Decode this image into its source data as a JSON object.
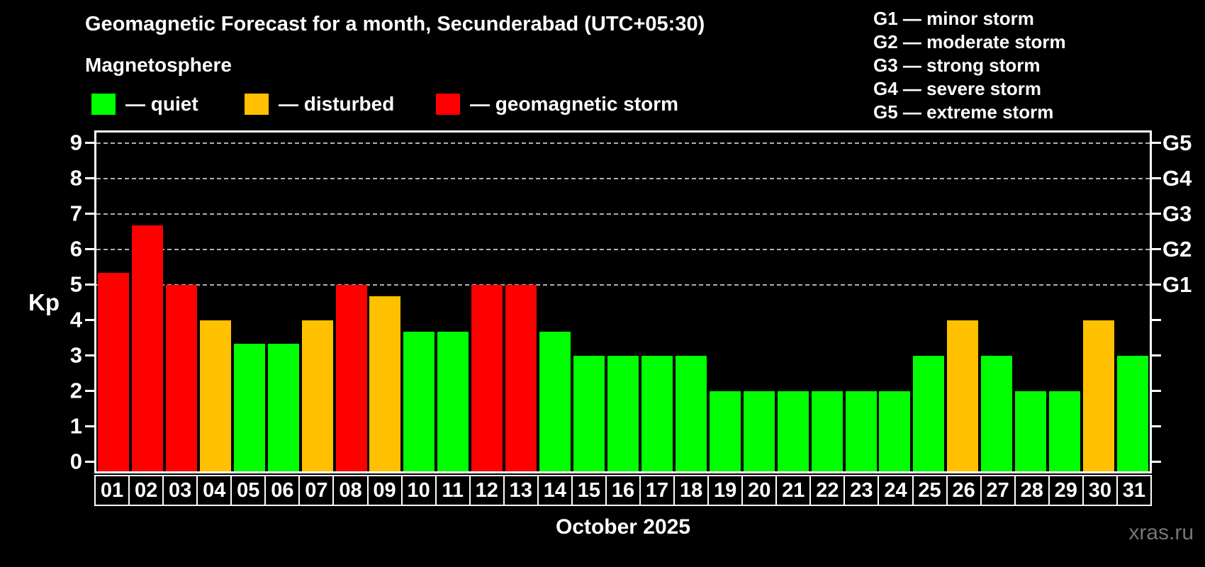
{
  "title": "Geomagnetic Forecast for a month, Secunderabad (UTC+05:30)",
  "subtitle": "Magnetosphere",
  "legend": {
    "quiet_label": "— quiet",
    "disturbed_label": "— disturbed",
    "storm_label": "— geomagnetic storm"
  },
  "g_scale_legend": [
    "G1 — minor storm",
    "G2 — moderate storm",
    "G3 — strong storm",
    "G4 — severe storm",
    "G5 — extreme storm"
  ],
  "y_axis": {
    "label": "Kp",
    "ticks": [
      0,
      1,
      2,
      3,
      4,
      5,
      6,
      7,
      8,
      9
    ]
  },
  "right_axis": {
    "labels": [
      {
        "text": "G5",
        "kp": 9
      },
      {
        "text": "G4",
        "kp": 8
      },
      {
        "text": "G3",
        "kp": 7
      },
      {
        "text": "G2",
        "kp": 6
      },
      {
        "text": "G1",
        "kp": 5
      }
    ]
  },
  "x_axis": {
    "title": "October 2025"
  },
  "watermark": "xras.ru",
  "colors": {
    "quiet": "#00ff00",
    "disturbed": "#ffc000",
    "storm": "#ff0000",
    "grid": "#b0b0b0",
    "frame": "#ffffff",
    "background": "#000000"
  },
  "chart_data": {
    "type": "bar",
    "title": "Geomagnetic Forecast for a month, Secunderabad (UTC+05:30)",
    "xlabel": "October 2025",
    "ylabel": "Kp",
    "ylim": [
      0,
      9
    ],
    "grid": "dashed horizontal lines at Kp 5-9 (G1-G5)",
    "gridlines_at_kp": [
      5,
      6,
      7,
      8,
      9
    ],
    "legend_position": "top-left",
    "categories": [
      "01",
      "02",
      "03",
      "04",
      "05",
      "06",
      "07",
      "08",
      "09",
      "10",
      "11",
      "12",
      "13",
      "14",
      "15",
      "16",
      "17",
      "18",
      "19",
      "20",
      "21",
      "22",
      "23",
      "24",
      "25",
      "26",
      "27",
      "28",
      "29",
      "30",
      "31"
    ],
    "values": [
      5.33,
      6.67,
      5,
      4,
      3.33,
      3.33,
      4,
      5,
      4.67,
      3.67,
      3.67,
      5,
      5,
      3.67,
      3,
      3,
      3,
      3,
      2,
      2,
      2,
      2,
      2,
      2,
      3,
      4,
      3,
      2,
      2,
      4,
      3
    ],
    "statuses": [
      "storm",
      "storm",
      "storm",
      "disturbed",
      "quiet",
      "quiet",
      "disturbed",
      "storm",
      "disturbed",
      "quiet",
      "quiet",
      "storm",
      "storm",
      "quiet",
      "quiet",
      "quiet",
      "quiet",
      "quiet",
      "quiet",
      "quiet",
      "quiet",
      "quiet",
      "quiet",
      "quiet",
      "quiet",
      "disturbed",
      "quiet",
      "quiet",
      "quiet",
      "disturbed",
      "quiet"
    ]
  }
}
